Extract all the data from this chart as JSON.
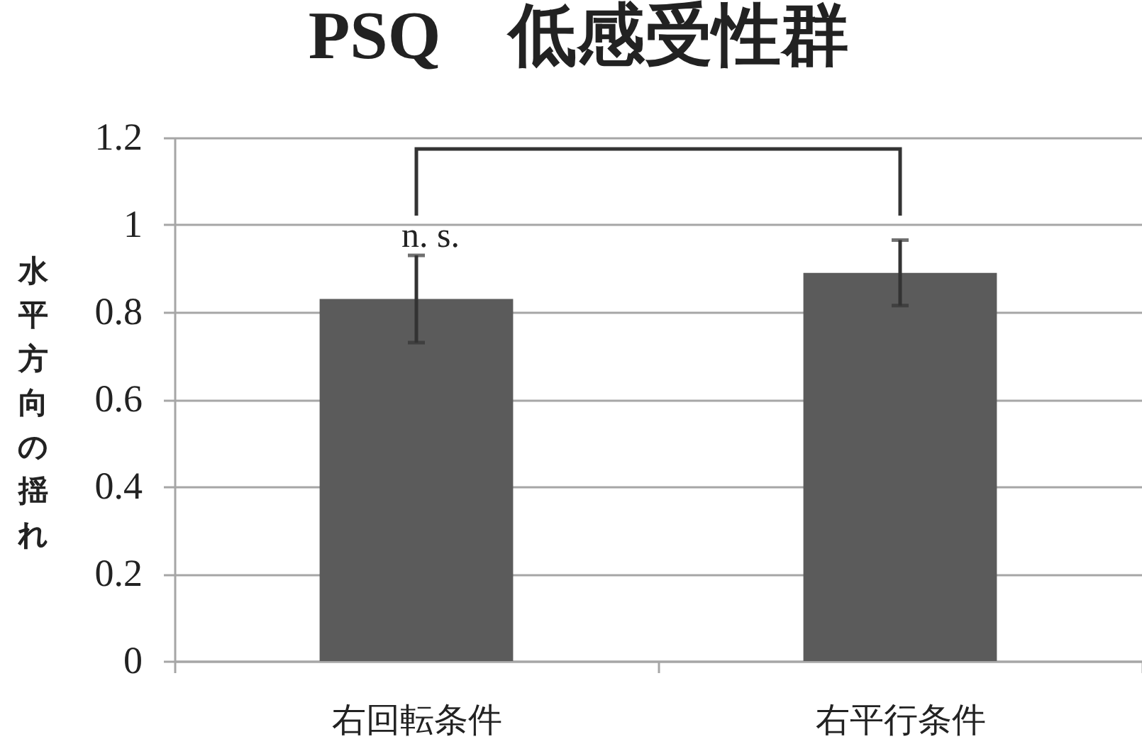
{
  "chart_data": {
    "type": "bar",
    "title": "PSQ　低感受性群",
    "ylabel": "水平方向の揺れ",
    "categories": [
      "右回転条件",
      "右平行条件"
    ],
    "values": [
      0.83,
      0.89
    ],
    "errors": [
      0.1,
      0.075
    ],
    "color": "#5b5b5b",
    "ylim": [
      0,
      1.2
    ],
    "yticks": [
      0,
      0.2,
      0.4,
      0.6,
      0.8,
      1,
      1.2
    ],
    "grid": "y",
    "annotations": [
      "n. s."
    ]
  }
}
